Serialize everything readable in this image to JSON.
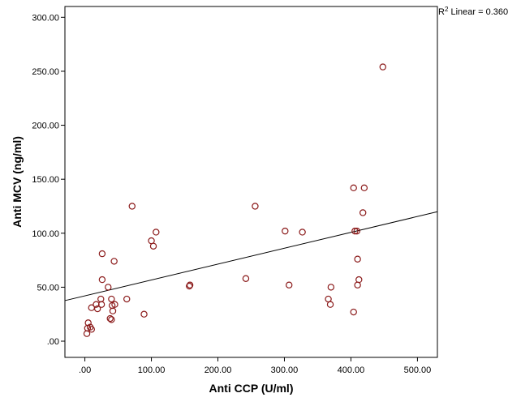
{
  "chart_data": {
    "type": "scatter",
    "xlabel": "Anti CCP (U/ml)",
    "ylabel": "Anti MCV (ng/ml)",
    "xlim": [
      -30,
      530
    ],
    "ylim": [
      -15,
      310
    ],
    "x_ticks": [
      0,
      100,
      200,
      300,
      400,
      500
    ],
    "x_tick_labels": [
      ".00",
      "100.00",
      "200.00",
      "300.00",
      "400.00",
      "500.00"
    ],
    "y_ticks": [
      0,
      50,
      100,
      150,
      200,
      250,
      300
    ],
    "y_tick_labels": [
      ".00",
      "50.00",
      "100.00",
      "150.00",
      "200.00",
      "250.00",
      "300.00"
    ],
    "grid": false,
    "marker_color": "#8b1a1a",
    "fit_line": {
      "label": "R² Linear = 0.360",
      "label_prefix": "R",
      "label_sup": "2",
      "label_suffix": " Linear = 0.360",
      "intercept": 42,
      "slope": 0.147
    },
    "points": [
      {
        "x": 3,
        "y": 7
      },
      {
        "x": 4,
        "y": 12
      },
      {
        "x": 5,
        "y": 17
      },
      {
        "x": 8,
        "y": 13
      },
      {
        "x": 10,
        "y": 11
      },
      {
        "x": 10,
        "y": 31
      },
      {
        "x": 17,
        "y": 34
      },
      {
        "x": 19,
        "y": 30
      },
      {
        "x": 24,
        "y": 39
      },
      {
        "x": 25,
        "y": 34
      },
      {
        "x": 26,
        "y": 57
      },
      {
        "x": 26,
        "y": 81
      },
      {
        "x": 35,
        "y": 50
      },
      {
        "x": 38,
        "y": 21
      },
      {
        "x": 40,
        "y": 20
      },
      {
        "x": 40,
        "y": 39
      },
      {
        "x": 41,
        "y": 33
      },
      {
        "x": 42,
        "y": 28
      },
      {
        "x": 44,
        "y": 74
      },
      {
        "x": 45,
        "y": 34
      },
      {
        "x": 63,
        "y": 39
      },
      {
        "x": 71,
        "y": 125
      },
      {
        "x": 89,
        "y": 25
      },
      {
        "x": 100,
        "y": 93
      },
      {
        "x": 103,
        "y": 88
      },
      {
        "x": 107,
        "y": 101
      },
      {
        "x": 157,
        "y": 51
      },
      {
        "x": 158,
        "y": 52
      },
      {
        "x": 242,
        "y": 58
      },
      {
        "x": 256,
        "y": 125
      },
      {
        "x": 301,
        "y": 102
      },
      {
        "x": 307,
        "y": 52
      },
      {
        "x": 327,
        "y": 101
      },
      {
        "x": 366,
        "y": 39
      },
      {
        "x": 369,
        "y": 34
      },
      {
        "x": 370,
        "y": 50
      },
      {
        "x": 404,
        "y": 142
      },
      {
        "x": 404,
        "y": 27
      },
      {
        "x": 406,
        "y": 102
      },
      {
        "x": 409,
        "y": 102
      },
      {
        "x": 410,
        "y": 76
      },
      {
        "x": 410,
        "y": 52
      },
      {
        "x": 412,
        "y": 57
      },
      {
        "x": 418,
        "y": 119
      },
      {
        "x": 420,
        "y": 142
      },
      {
        "x": 448,
        "y": 254
      }
    ]
  }
}
